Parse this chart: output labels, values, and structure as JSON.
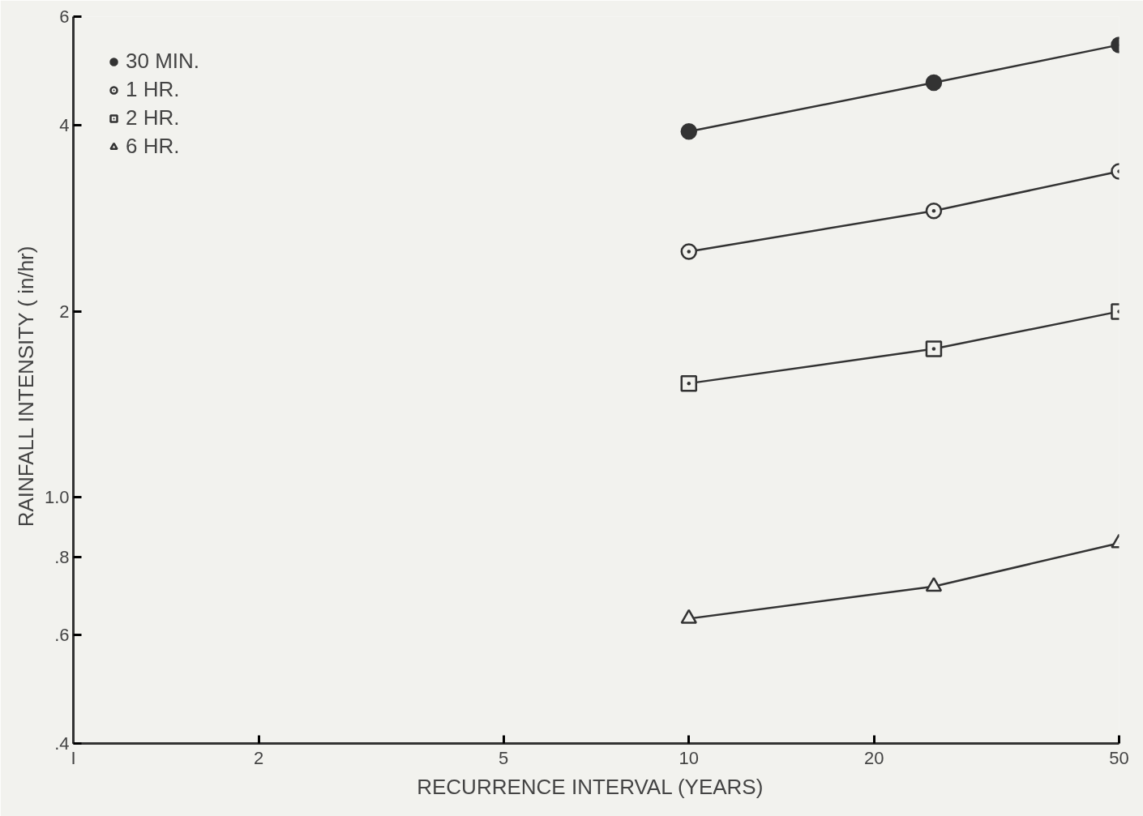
{
  "chart_data": {
    "type": "line",
    "xlabel": "RECURRENCE  INTERVAL  (YEARS)",
    "ylabel": "RAINFALL  INTENSITY  ( in/hr)",
    "log": "xy",
    "grid": false,
    "legend": "top left",
    "xlim": [
      1,
      50
    ],
    "xticks": [
      {
        "value": 1,
        "label": "I"
      },
      2,
      5,
      10,
      20,
      50
    ],
    "ylim": [
      0.4,
      6
    ],
    "yticks": [
      {
        "value": 0.4,
        "label": ".4"
      },
      {
        "value": 0.6,
        "label": ".6"
      },
      {
        "value": 0.8,
        "label": ".8"
      },
      {
        "value": 1.0,
        "label": "1.0"
      },
      2,
      4,
      6
    ],
    "x": [
      10,
      25,
      50
    ],
    "series": [
      {
        "name": "30 MIN.",
        "color": "#333333",
        "marker": "circle",
        "values": [
          3.91,
          4.69,
          5.4
        ]
      },
      {
        "name": "1 HR.",
        "color": "#333333",
        "marker": "circle_dot",
        "values": [
          2.5,
          2.91,
          3.37
        ]
      },
      {
        "name": "2 HR.",
        "color": "#333333",
        "marker": "square_dot",
        "values": [
          1.53,
          1.74,
          2.0
        ]
      },
      {
        "name": "6 HR.",
        "color": "#333333",
        "marker": "triangle",
        "values": [
          0.637,
          0.718,
          0.844
        ]
      }
    ]
  }
}
